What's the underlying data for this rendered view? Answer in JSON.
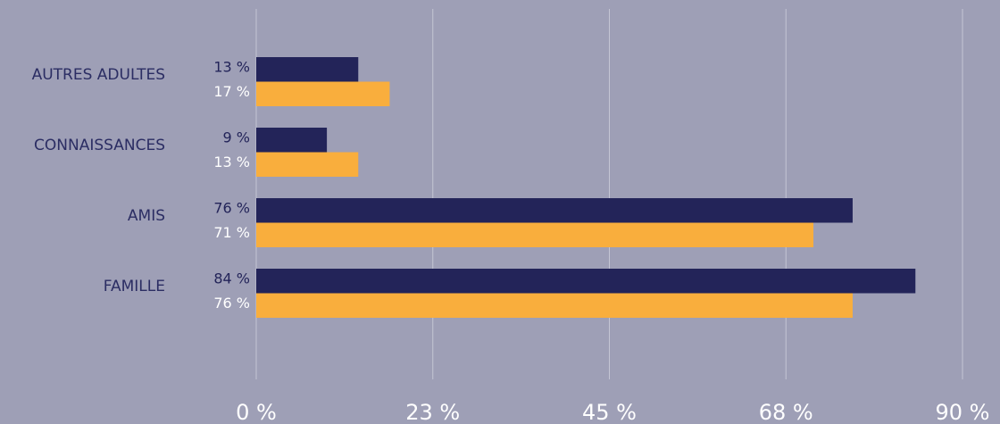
{
  "chart_data": {
    "type": "bar",
    "orientation": "horizontal",
    "categories": [
      "AUTRES ADULTES",
      "CONNAISSANCES",
      "AMIS",
      "FAMILLE"
    ],
    "series": [
      {
        "color": "#232459",
        "values": [
          13,
          9,
          76,
          84
        ],
        "value_labels": [
          "13 %",
          "9 %",
          "76 %",
          "84 %"
        ]
      },
      {
        "color": "#f9ae3d",
        "values": [
          17,
          13,
          71,
          76
        ],
        "value_labels": [
          "17 %",
          "13 %",
          "71 %",
          "76 %"
        ]
      }
    ],
    "xlim": [
      0,
      90
    ],
    "xticks": [
      {
        "value": 0,
        "label": "0 %"
      },
      {
        "value": 22.5,
        "label": "23 %"
      },
      {
        "value": 45,
        "label": "45 %"
      },
      {
        "value": 67.5,
        "label": "68 %"
      },
      {
        "value": 90,
        "label": "90 %"
      }
    ],
    "grid": true
  }
}
